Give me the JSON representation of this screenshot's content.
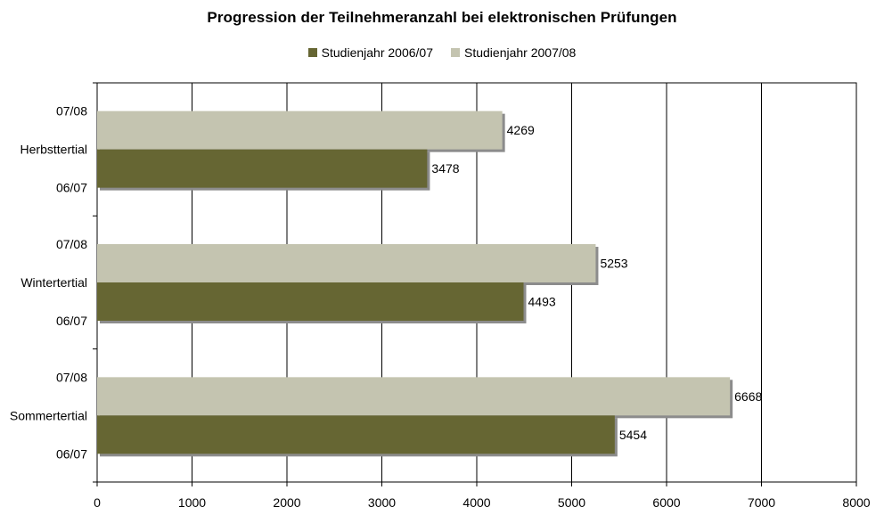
{
  "chart_data": {
    "type": "bar",
    "orientation": "horizontal",
    "title": "Progression der Teilnehmeranzahl bei elektronischen Prüfungen",
    "xlabel": "",
    "ylabel": "",
    "xlim": [
      0,
      8000
    ],
    "xticks": [
      0,
      1000,
      2000,
      3000,
      4000,
      5000,
      6000,
      7000,
      8000
    ],
    "grid": true,
    "legend_position": "top",
    "categories": [
      "Herbsttertial",
      "Wintertertial",
      "Sommertertial"
    ],
    "series": [
      {
        "name": "Studienjahr 2006/07",
        "short_label": "06/07",
        "color": "#666633",
        "values": [
          3478,
          4493,
          5454
        ]
      },
      {
        "name": "Studienjahr 2007/08",
        "short_label": "07/08",
        "color": "#c4c4b0",
        "values": [
          4269,
          5253,
          6668
        ]
      }
    ]
  }
}
